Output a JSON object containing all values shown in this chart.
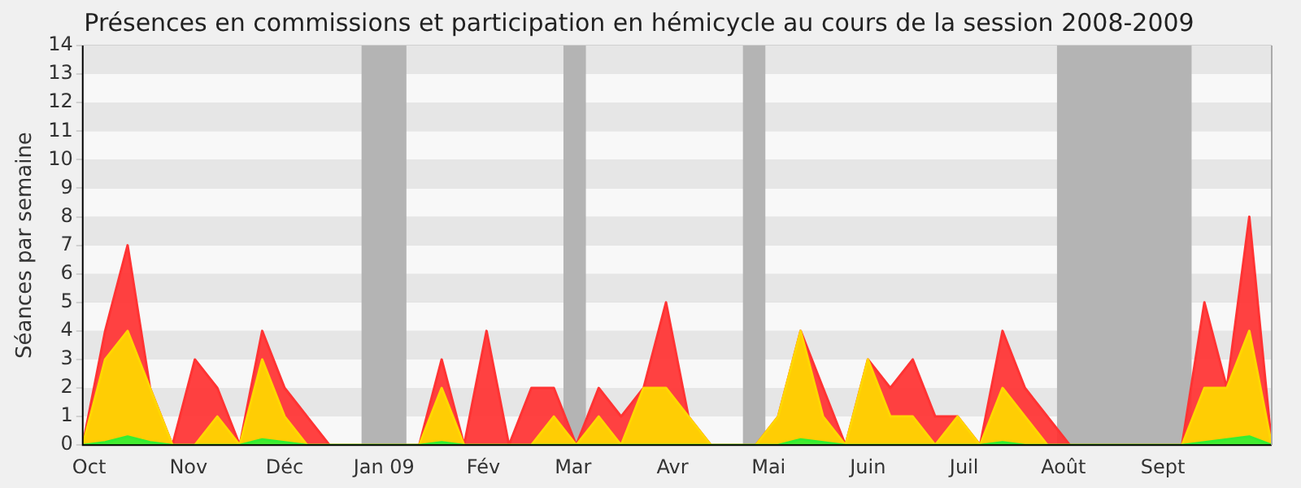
{
  "chart_data": {
    "type": "area",
    "title": "Présences en commissions et participation en hémicycle au cours de la session 2008-2009",
    "ylabel": "Séances par semaine",
    "x": [
      "2008-09-29",
      "2008-10-06",
      "2008-10-13",
      "2008-10-20",
      "2008-10-27",
      "2008-11-03",
      "2008-11-10",
      "2008-11-17",
      "2008-11-24",
      "2008-12-01",
      "2008-12-08",
      "2008-12-15",
      "2008-12-22",
      "2008-12-29",
      "2009-01-05",
      "2009-01-12",
      "2009-01-19",
      "2009-01-26",
      "2009-02-02",
      "2009-02-09",
      "2009-02-16",
      "2009-02-23",
      "2009-03-02",
      "2009-03-09",
      "2009-03-16",
      "2009-03-23",
      "2009-03-30",
      "2009-04-06",
      "2009-04-13",
      "2009-04-20",
      "2009-04-27",
      "2009-05-04",
      "2009-05-11",
      "2009-05-18",
      "2009-05-25",
      "2009-06-01",
      "2009-06-08",
      "2009-06-15",
      "2009-06-22",
      "2009-06-29",
      "2009-07-06",
      "2009-07-13",
      "2009-07-20",
      "2009-07-27",
      "2009-08-03",
      "2009-08-10",
      "2009-08-17",
      "2009-08-24",
      "2009-08-31",
      "2009-09-07",
      "2009-09-14",
      "2009-09-21",
      "2009-09-28",
      "2009-10-05"
    ],
    "series": [
      {
        "color": "#ff3333",
        "values": [
          0,
          4,
          7,
          2,
          0,
          3,
          2,
          0,
          4,
          2,
          1,
          0,
          0,
          0,
          0,
          0,
          3,
          0,
          4,
          0,
          2,
          2,
          0,
          2,
          1,
          2,
          5,
          1,
          0,
          0,
          0,
          1,
          4,
          2,
          0,
          3,
          2,
          3,
          1,
          1,
          0,
          4,
          2,
          1,
          0,
          0,
          0,
          0,
          0,
          0,
          5,
          2,
          8,
          0
        ]
      },
      {
        "color": "#ffd700",
        "values": [
          0,
          3,
          4,
          2,
          0,
          0,
          1,
          0,
          3,
          1,
          0,
          0,
          0,
          0,
          0,
          0,
          2,
          0,
          0,
          0,
          0,
          1,
          0,
          1,
          0,
          2,
          2,
          1,
          0,
          0,
          0,
          1,
          4,
          1,
          0,
          3,
          1,
          1,
          0,
          1,
          0,
          2,
          1,
          0,
          0,
          0,
          0,
          0,
          0,
          0,
          2,
          2,
          4,
          0
        ]
      },
      {
        "color": "#33ee33",
        "values": [
          0,
          0.1,
          0.3,
          0.1,
          0,
          0,
          0,
          0,
          0.2,
          0.1,
          0,
          0,
          0,
          0,
          0,
          0,
          0.1,
          0,
          0,
          0,
          0,
          0,
          0,
          0,
          0,
          0,
          0,
          0,
          0,
          0,
          0,
          0,
          0.2,
          0.1,
          0,
          0,
          0,
          0,
          0,
          0,
          0,
          0.1,
          0,
          0,
          0,
          0,
          0,
          0,
          0,
          0,
          0.1,
          0.2,
          0.3,
          0
        ]
      }
    ],
    "xlim": [
      "2008-09-29",
      "2009-10-05"
    ],
    "xticks": [
      {
        "value": "2008-10-01",
        "label": "Oct"
      },
      {
        "value": "2008-11-01",
        "label": "Nov"
      },
      {
        "value": "2008-12-01",
        "label": "Déc"
      },
      {
        "value": "2009-01-01",
        "label": "Jan 09"
      },
      {
        "value": "2009-02-01",
        "label": "Fév"
      },
      {
        "value": "2009-03-01",
        "label": "Mar"
      },
      {
        "value": "2009-04-01",
        "label": "Avr"
      },
      {
        "value": "2009-05-01",
        "label": "Mai"
      },
      {
        "value": "2009-06-01",
        "label": "Juin"
      },
      {
        "value": "2009-07-01",
        "label": "Juil"
      },
      {
        "value": "2009-08-01",
        "label": "Août"
      },
      {
        "value": "2009-09-01",
        "label": "Sept"
      }
    ],
    "ylim": [
      0,
      14
    ],
    "yticks": [
      0,
      1,
      2,
      3,
      4,
      5,
      6,
      7,
      8,
      9,
      10,
      11,
      12,
      13,
      14
    ],
    "grid": "y",
    "bands": [
      {
        "axis": "x",
        "from": "2008-12-25",
        "to": "2009-01-08",
        "color": "#b4b4b4"
      },
      {
        "axis": "x",
        "from": "2009-02-26",
        "to": "2009-03-05",
        "color": "#b4b4b4"
      },
      {
        "axis": "x",
        "from": "2009-04-23",
        "to": "2009-04-30",
        "color": "#b4b4b4"
      },
      {
        "axis": "x",
        "from": "2009-07-30",
        "to": "2009-09-10",
        "color": "#b4b4b4"
      }
    ]
  }
}
